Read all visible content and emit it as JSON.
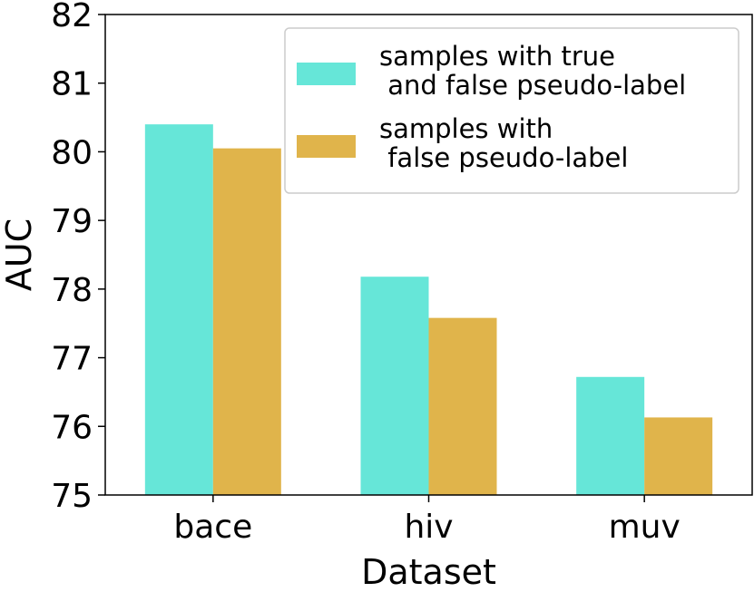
{
  "chart_data": {
    "type": "bar",
    "categories": [
      "bace",
      "hiv",
      "muv"
    ],
    "series": [
      {
        "name": "samples with true\n and false pseudo-label",
        "color": "#66e6d8",
        "values": [
          80.4,
          78.18,
          76.72
        ]
      },
      {
        "name": "samples with\n false pseudo-label",
        "color": "#e0b44b",
        "values": [
          80.05,
          77.58,
          76.13
        ]
      }
    ],
    "title": "",
    "xlabel": "Dataset",
    "ylabel": "AUC",
    "ylim": [
      75,
      82
    ],
    "yticks": [
      "75",
      "76",
      "77",
      "78",
      "79",
      "80",
      "81",
      "82"
    ],
    "grid": false,
    "legend_position": "top-right"
  }
}
